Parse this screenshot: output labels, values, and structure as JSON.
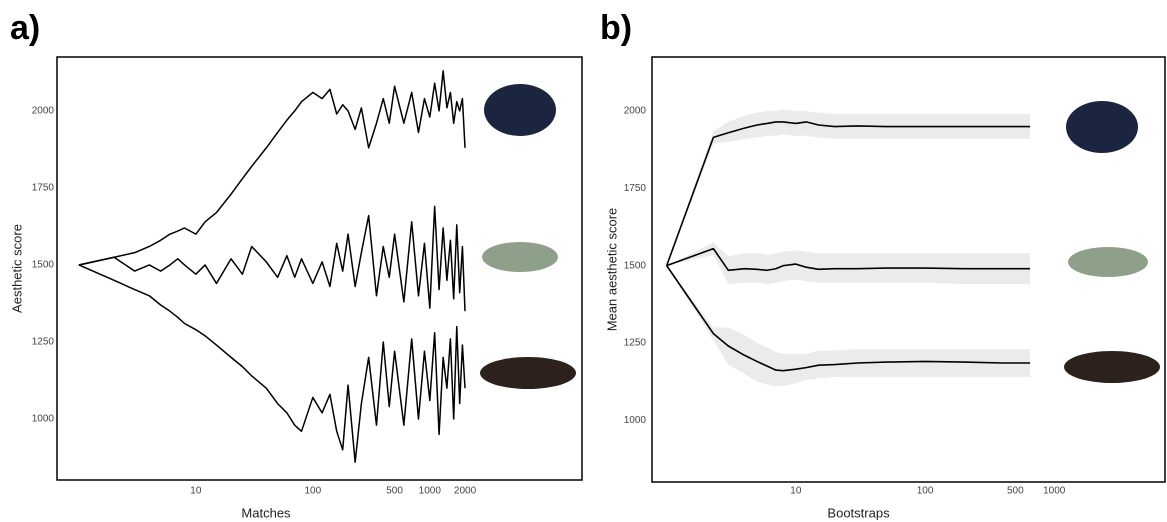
{
  "chart_data": [
    {
      "type": "line",
      "panel_label": "a)",
      "x_label": "Matches",
      "y_label": "Aesthetic score",
      "log_x": true,
      "xlim": [
        0.65,
        20000
      ],
      "ylim": [
        802,
        2175
      ],
      "xticks": [
        10,
        100,
        500,
        1000,
        2000
      ],
      "yticks": [
        1000,
        1250,
        1500,
        1750,
        2000
      ],
      "x": [
        1,
        2,
        3,
        4,
        5,
        6,
        7,
        8,
        10,
        12,
        15,
        20,
        25,
        30,
        40,
        50,
        60,
        70,
        80,
        100,
        120,
        140,
        160,
        180,
        200,
        230,
        260,
        300,
        350,
        400,
        450,
        500,
        600,
        700,
        800,
        900,
        1000,
        1100,
        1200,
        1300,
        1400,
        1500,
        1600,
        1700,
        1800,
        1900,
        2000
      ],
      "series": [
        {
          "color": "#000000",
          "values": [
            1500,
            1525,
            1540,
            1560,
            1580,
            1600,
            1610,
            1620,
            1600,
            1640,
            1670,
            1730,
            1780,
            1820,
            1880,
            1930,
            1970,
            2000,
            2030,
            2060,
            2040,
            2070,
            1990,
            2020,
            2000,
            1940,
            2010,
            1880,
            1960,
            2040,
            1960,
            2080,
            1960,
            2060,
            1930,
            2040,
            1980,
            2090,
            2000,
            2130,
            2010,
            2060,
            1960,
            2030,
            2000,
            2040,
            1880
          ]
        },
        {
          "color": "#000000",
          "values": [
            1500,
            1525,
            1480,
            1500,
            1480,
            1500,
            1520,
            1500,
            1470,
            1500,
            1440,
            1520,
            1470,
            1560,
            1510,
            1460,
            1530,
            1460,
            1520,
            1440,
            1510,
            1430,
            1570,
            1480,
            1600,
            1430,
            1540,
            1660,
            1400,
            1560,
            1460,
            1600,
            1380,
            1640,
            1400,
            1570,
            1360,
            1690,
            1420,
            1620,
            1450,
            1580,
            1390,
            1630,
            1410,
            1560,
            1350
          ]
        },
        {
          "color": "#000000",
          "values": [
            1500,
            1450,
            1420,
            1400,
            1370,
            1350,
            1330,
            1310,
            1290,
            1270,
            1240,
            1200,
            1170,
            1140,
            1100,
            1050,
            1020,
            980,
            960,
            1070,
            1020,
            1080,
            960,
            900,
            1110,
            860,
            1050,
            1200,
            980,
            1250,
            1040,
            1220,
            980,
            1260,
            1000,
            1220,
            1060,
            1280,
            950,
            1200,
            1100,
            1260,
            1000,
            1300,
            1050,
            1240,
            1100
          ]
        }
      ]
    },
    {
      "type": "band_line",
      "panel_label": "b)",
      "x_label": "Bootstraps",
      "y_label": "Mean aesthetic score",
      "log_x": true,
      "xlim": [
        0.77,
        7200
      ],
      "ylim": [
        800,
        2175
      ],
      "band_color": "#ebebeb",
      "xticks": [
        10,
        100,
        500,
        1000
      ],
      "yticks": [
        1000,
        1250,
        1500,
        1750,
        2000
      ],
      "x": [
        1,
        2.3,
        3,
        4,
        5,
        6,
        7,
        8,
        10,
        12,
        15,
        20,
        30,
        50,
        100,
        200,
        400,
        650
      ],
      "series": [
        {
          "color": "#000000",
          "values": [
            1500,
            1915,
            1930,
            1945,
            1955,
            1960,
            1965,
            1965,
            1960,
            1965,
            1955,
            1950,
            1952,
            1950,
            1950,
            1950,
            1950,
            1950
          ],
          "lower": [
            1500,
            1895,
            1900,
            1910,
            1915,
            1920,
            1920,
            1925,
            1920,
            1920,
            1915,
            1910,
            1910,
            1910,
            1910,
            1910,
            1910,
            1910
          ],
          "upper": [
            1500,
            1935,
            1965,
            1985,
            1995,
            2000,
            2000,
            2005,
            2000,
            2000,
            1995,
            1990,
            1990,
            1990,
            1990,
            1990,
            1990,
            1990
          ]
        },
        {
          "color": "#000000",
          "values": [
            1500,
            1555,
            1485,
            1490,
            1488,
            1485,
            1490,
            1500,
            1505,
            1495,
            1488,
            1490,
            1490,
            1492,
            1492,
            1490,
            1490,
            1490
          ],
          "lower": [
            1500,
            1535,
            1440,
            1445,
            1445,
            1440,
            1445,
            1450,
            1455,
            1450,
            1445,
            1445,
            1445,
            1445,
            1445,
            1440,
            1440,
            1440
          ],
          "upper": [
            1500,
            1575,
            1530,
            1540,
            1540,
            1535,
            1540,
            1545,
            1550,
            1545,
            1540,
            1540,
            1540,
            1540,
            1540,
            1540,
            1540,
            1540
          ]
        },
        {
          "color": "#000000",
          "values": [
            1500,
            1280,
            1240,
            1210,
            1190,
            1175,
            1162,
            1160,
            1165,
            1170,
            1178,
            1180,
            1185,
            1188,
            1190,
            1188,
            1185,
            1185
          ],
          "lower": [
            1500,
            1260,
            1180,
            1150,
            1125,
            1115,
            1110,
            1110,
            1120,
            1130,
            1135,
            1140,
            1140,
            1140,
            1140,
            1140,
            1140,
            1140
          ],
          "upper": [
            1500,
            1300,
            1300,
            1275,
            1250,
            1235,
            1220,
            1215,
            1215,
            1215,
            1225,
            1225,
            1230,
            1230,
            1230,
            1230,
            1230,
            1230
          ]
        }
      ]
    }
  ]
}
